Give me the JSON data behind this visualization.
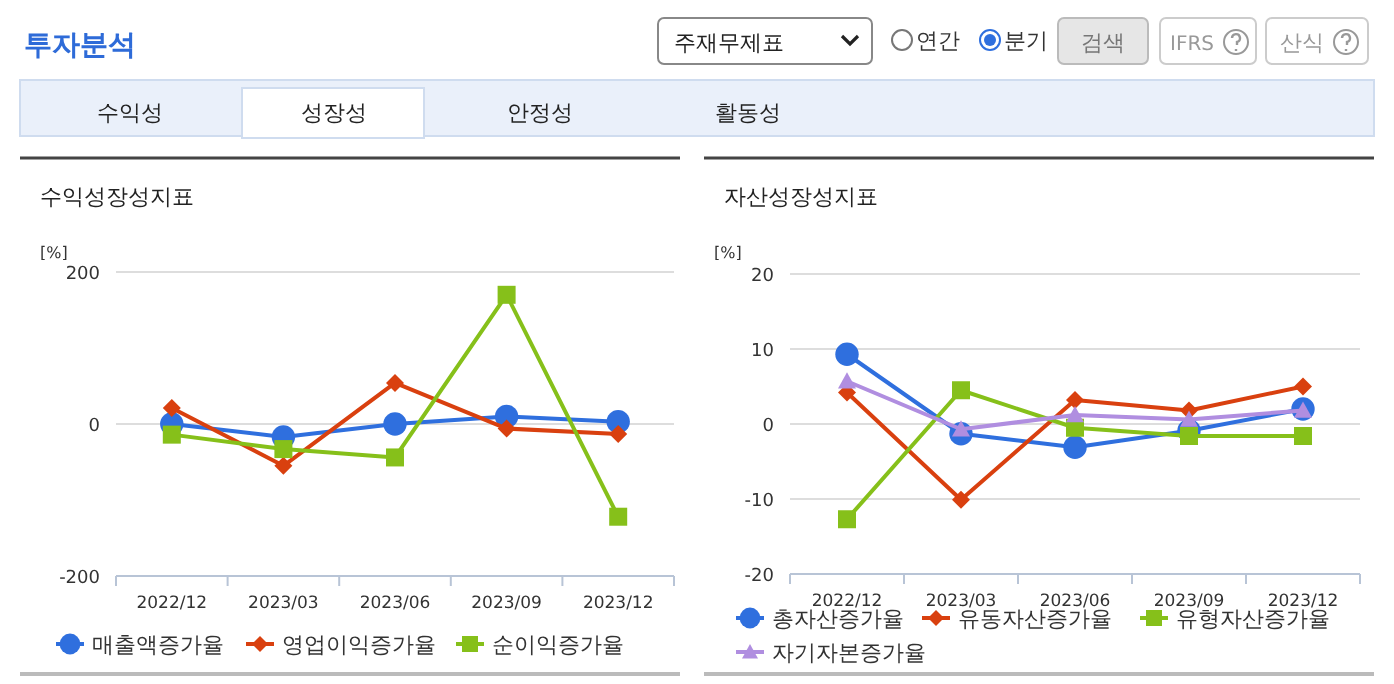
{
  "chart_data": [
    {
      "type": "other",
      "title": "투자분석",
      "annotations": [
        "주재무제표",
        "연간",
        "분기",
        "검색",
        "IFRS",
        "산식",
        "수익성",
        "성장성",
        "안정성",
        "활동성"
      ]
    },
    {
      "type": "line",
      "title": "수익성장성지표",
      "ylabel": "[%]",
      "categories": [
        "2022/12",
        "2023/03",
        "2023/06",
        "2023/09",
        "2023/12"
      ],
      "ylim": [
        -200,
        200
      ],
      "yticks": [
        -200,
        0,
        200
      ],
      "grid": "y",
      "legend": "bottom",
      "series": [
        {
          "name": "매출액증가율",
          "color": "#2f6fde",
          "marker": "circle",
          "values": [
            0,
            -17,
            0,
            10,
            3
          ]
        },
        {
          "name": "영업이익증가율",
          "color": "#d9400f",
          "marker": "diamond",
          "values": [
            21,
            -55,
            54,
            -6,
            -13
          ]
        },
        {
          "name": "순이익증가율",
          "color": "#86c01a",
          "marker": "square",
          "values": [
            -14,
            -33,
            -44,
            170,
            -122
          ]
        }
      ]
    },
    {
      "type": "line",
      "title": "자산성장성지표",
      "ylabel": "[%]",
      "categories": [
        "2022/12",
        "2023/03",
        "2023/06",
        "2023/09",
        "2023/12"
      ],
      "ylim": [
        -20,
        20
      ],
      "yticks": [
        -20,
        -10,
        0,
        10,
        20
      ],
      "grid": "y",
      "legend": "bottom",
      "series": [
        {
          "name": "총자산증가율",
          "color": "#2f6fde",
          "marker": "circle",
          "values": [
            9.3,
            -1.3,
            -3.1,
            -0.9,
            2.0
          ]
        },
        {
          "name": "유동자산증가율",
          "color": "#d9400f",
          "marker": "diamond",
          "values": [
            4.2,
            -10.1,
            3.2,
            1.8,
            5.0
          ]
        },
        {
          "name": "유형자산증가율",
          "color": "#86c01a",
          "marker": "square",
          "values": [
            -12.7,
            4.5,
            -0.5,
            -1.6,
            -1.6
          ]
        },
        {
          "name": "자기자본증가율",
          "color": "#b08ee0",
          "marker": "triangle",
          "values": [
            5.7,
            -0.7,
            1.2,
            0.6,
            1.8
          ]
        }
      ]
    }
  ]
}
